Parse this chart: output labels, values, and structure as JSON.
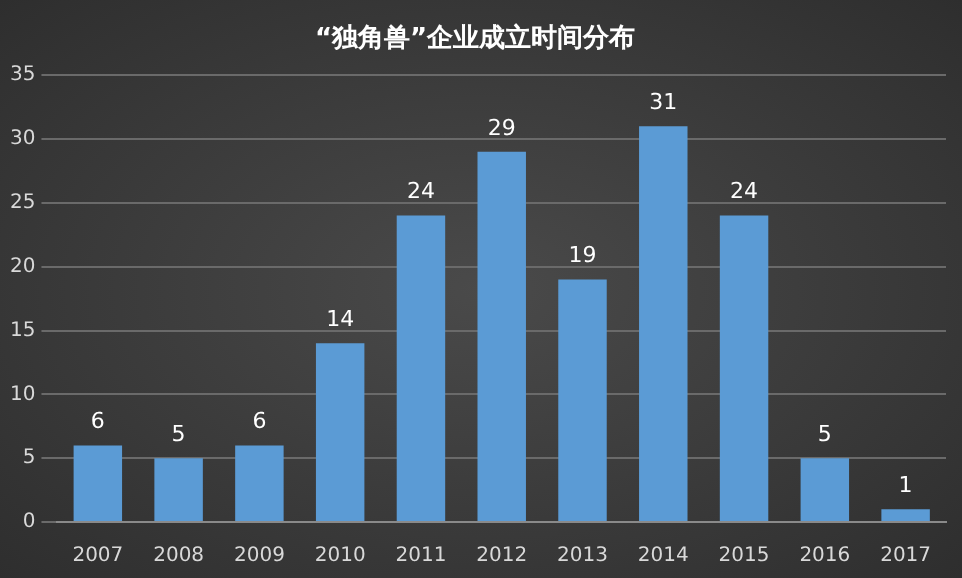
{
  "chart_data": {
    "type": "bar",
    "title": "“独角兽”企业成立时间分布",
    "categories": [
      "2007",
      "2008",
      "2009",
      "2010",
      "2011",
      "2012",
      "2013",
      "2014",
      "2015",
      "2016",
      "2017"
    ],
    "values": [
      6,
      5,
      6,
      14,
      24,
      29,
      19,
      31,
      24,
      5,
      1
    ],
    "color": "#5b9bd5",
    "ylim": [
      0,
      35
    ],
    "yticks": [
      0,
      5,
      10,
      15,
      20,
      25,
      30,
      35
    ],
    "grid": "y",
    "data_labels": true,
    "legend": false
  }
}
